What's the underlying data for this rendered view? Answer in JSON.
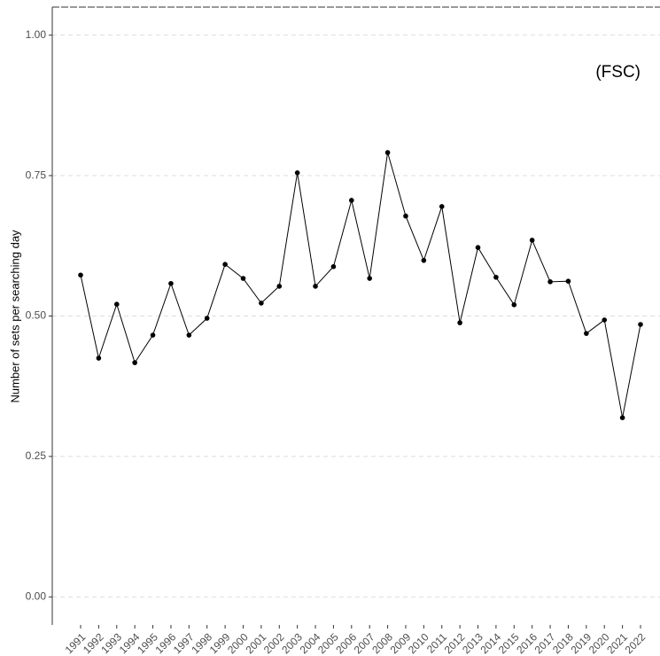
{
  "chart_data": {
    "type": "line",
    "y_label": "Number of sets per searching day",
    "annotation": "(FSC)",
    "categories": [
      "1991",
      "1992",
      "1993",
      "1994",
      "1995",
      "1996",
      "1997",
      "1998",
      "1999",
      "2000",
      "2001",
      "2002",
      "2003",
      "2004",
      "2005",
      "2006",
      "2007",
      "2008",
      "2009",
      "2010",
      "2011",
      "2012",
      "2013",
      "2014",
      "2015",
      "2016",
      "2017",
      "2018",
      "2019",
      "2020",
      "2021",
      "2022"
    ],
    "values": [
      0.573,
      0.425,
      0.521,
      0.417,
      0.466,
      0.558,
      0.466,
      0.496,
      0.592,
      0.567,
      0.523,
      0.553,
      0.755,
      0.553,
      0.588,
      0.706,
      0.567,
      0.791,
      0.678,
      0.599,
      0.695,
      0.488,
      0.622,
      0.569,
      0.52,
      0.635,
      0.561,
      0.562,
      0.469,
      0.493,
      0.319,
      0.485
    ],
    "color": "#000000",
    "ylim": [
      -0.05,
      1.05
    ],
    "yticks": [
      {
        "value": 0,
        "label": "0.00"
      },
      {
        "value": 0.25,
        "label": "0.25"
      },
      {
        "value": 0.5,
        "label": "0.50"
      },
      {
        "value": 0.75,
        "label": "0.75"
      },
      {
        "value": 1,
        "label": "1.00"
      }
    ],
    "grid": true
  }
}
